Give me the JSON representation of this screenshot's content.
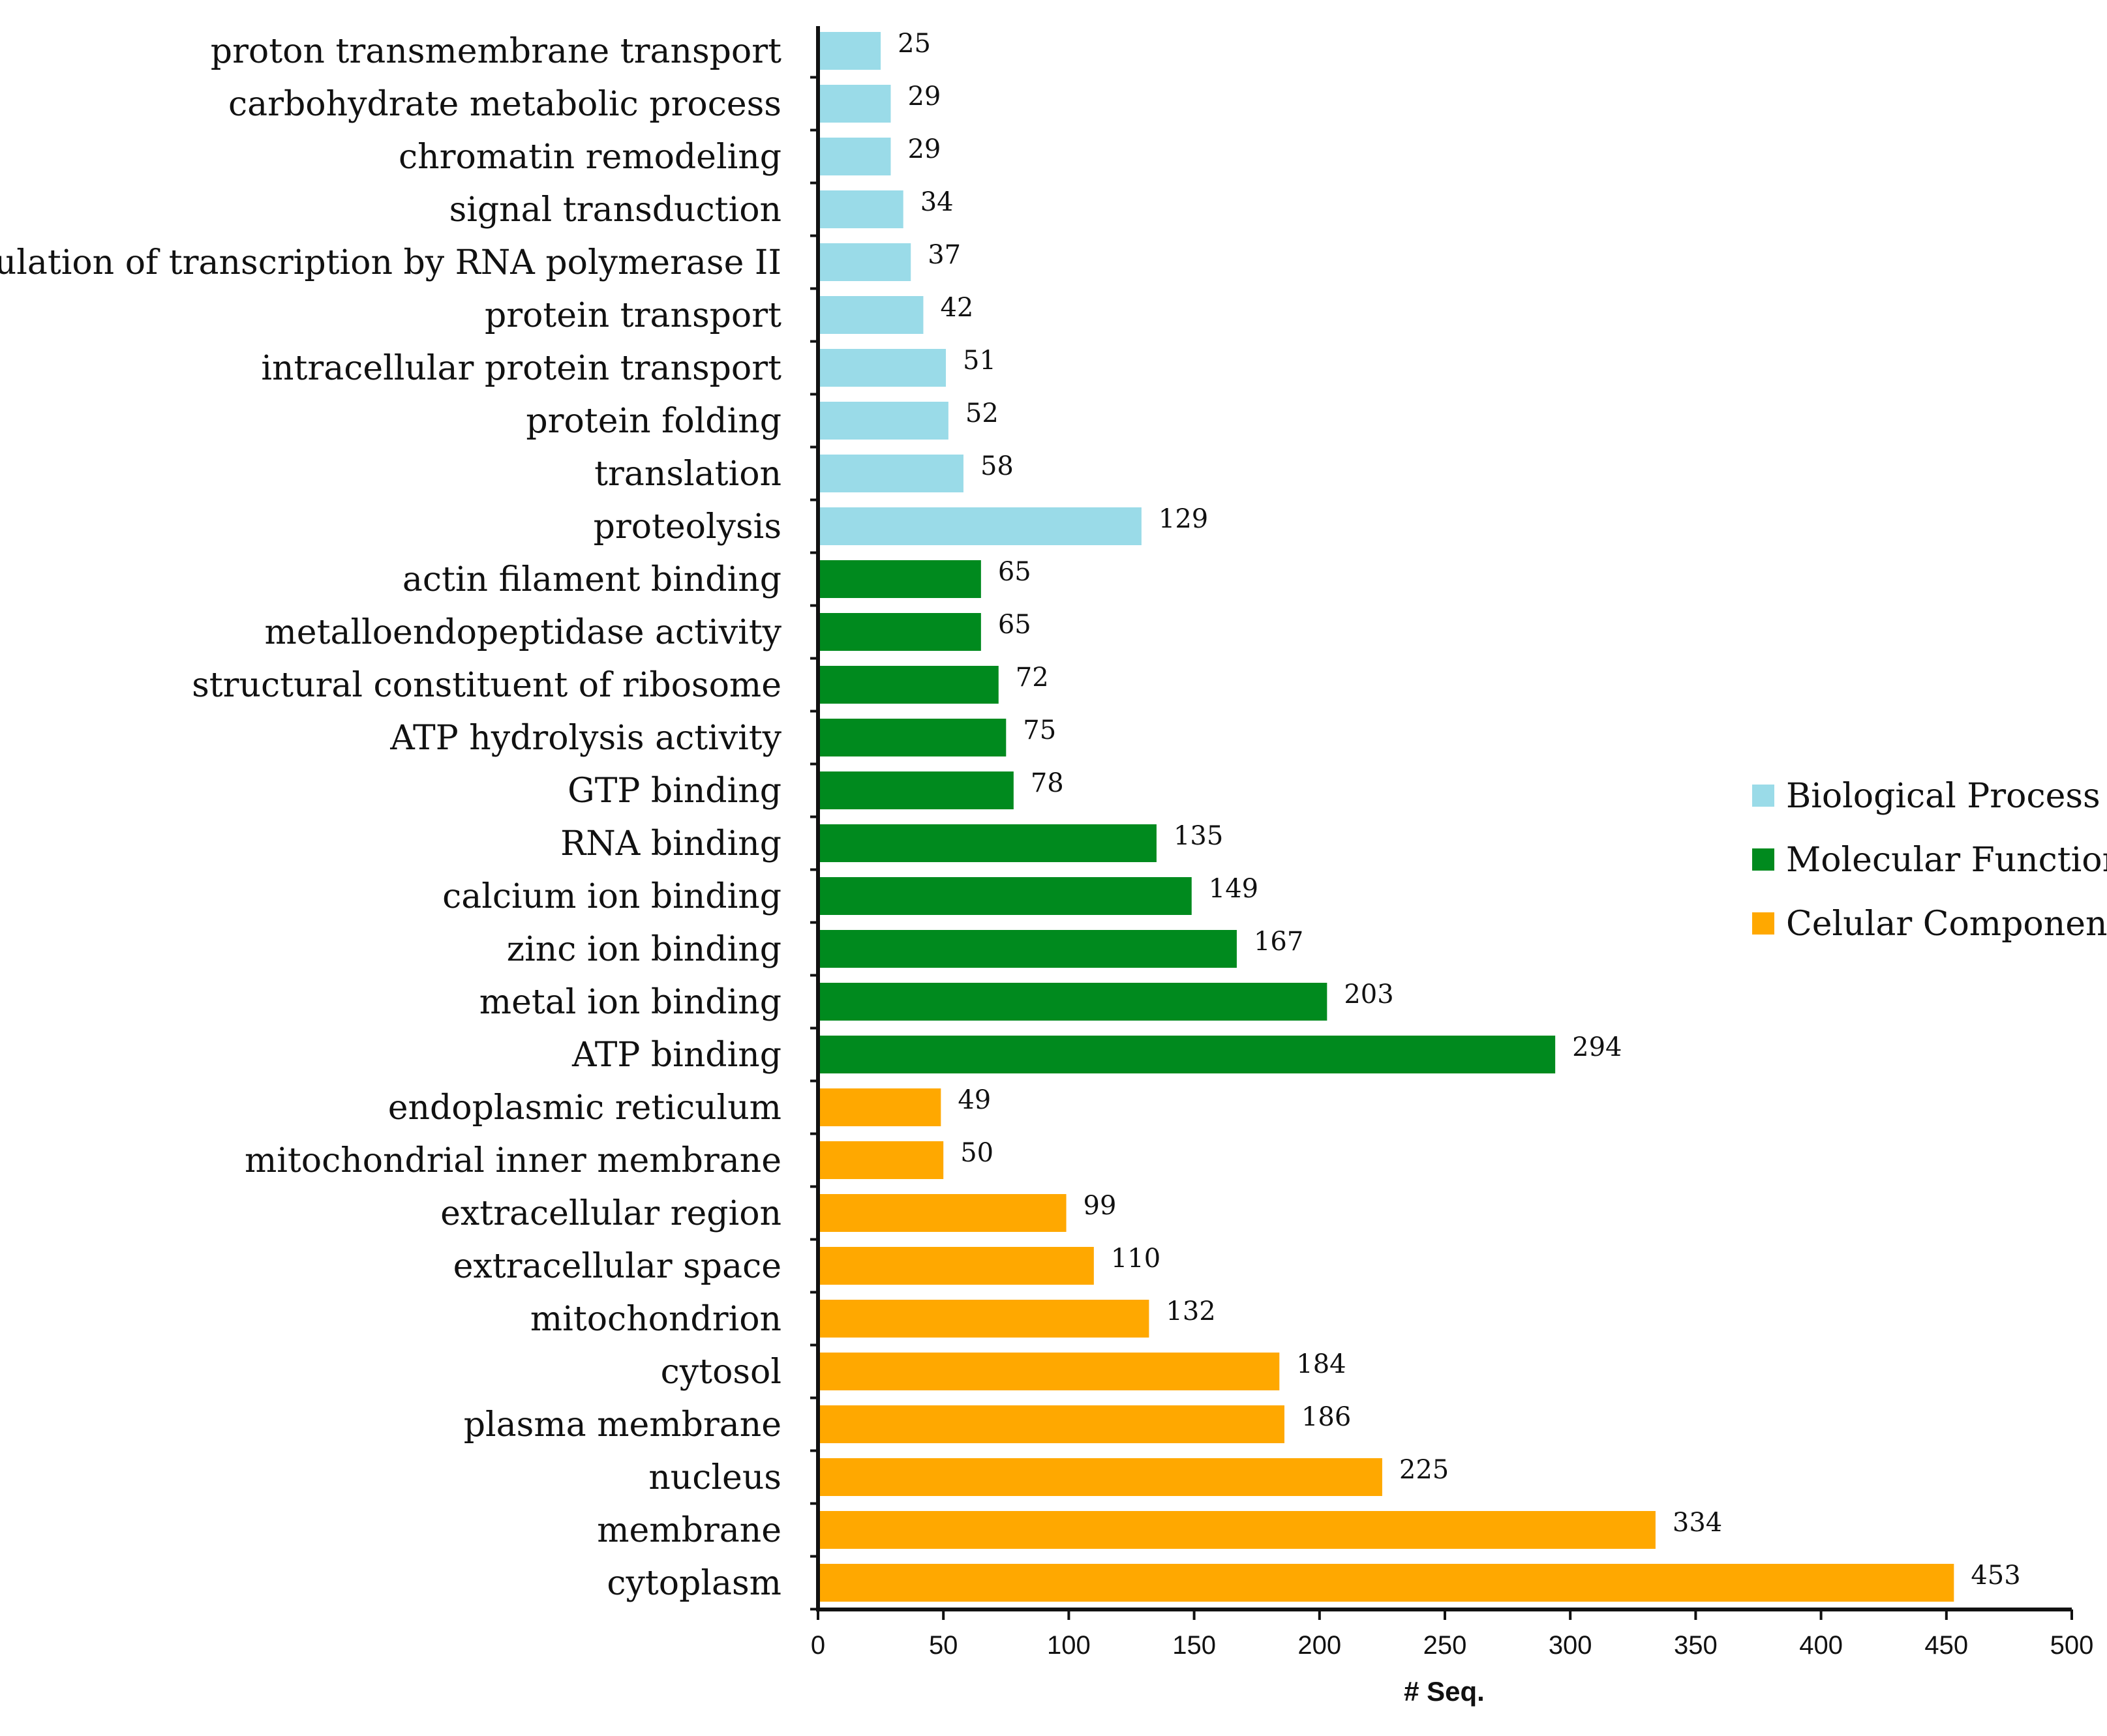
{
  "chart_data": {
    "type": "bar",
    "orientation": "horizontal",
    "title": "",
    "xlabel": "# Seq.",
    "ylabel": "",
    "xlim": [
      0,
      500
    ],
    "xticks": [
      0,
      50,
      100,
      150,
      200,
      250,
      300,
      350,
      400,
      450,
      500
    ],
    "grid": false,
    "legend_position": "right",
    "groups": [
      {
        "name": "Biological Process",
        "color": "#9ADBE8"
      },
      {
        "name": "Molecular Function",
        "color": "#008A1E"
      },
      {
        "name": "Celular Component",
        "color": "#FFA800"
      }
    ],
    "bars": [
      {
        "label": "proton transmembrane transport",
        "value": 25,
        "group": "Biological Process"
      },
      {
        "label": "carbohydrate metabolic process",
        "value": 29,
        "group": "Biological Process"
      },
      {
        "label": "chromatin remodeling",
        "value": 29,
        "group": "Biological Process"
      },
      {
        "label": "signal transduction",
        "value": 34,
        "group": "Biological Process"
      },
      {
        "label": "regulation of transcription by RNA polymerase II",
        "value": 37,
        "group": "Biological Process"
      },
      {
        "label": "protein transport",
        "value": 42,
        "group": "Biological Process"
      },
      {
        "label": "intracellular protein transport",
        "value": 51,
        "group": "Biological Process"
      },
      {
        "label": "protein folding",
        "value": 52,
        "group": "Biological Process"
      },
      {
        "label": "translation",
        "value": 58,
        "group": "Biological Process"
      },
      {
        "label": "proteolysis",
        "value": 129,
        "group": "Biological Process"
      },
      {
        "label": "actin filament binding",
        "value": 65,
        "group": "Molecular Function"
      },
      {
        "label": "metalloendopeptidase activity",
        "value": 65,
        "group": "Molecular Function"
      },
      {
        "label": "structural constituent of ribosome",
        "value": 72,
        "group": "Molecular Function"
      },
      {
        "label": "ATP hydrolysis activity",
        "value": 75,
        "group": "Molecular Function"
      },
      {
        "label": "GTP binding",
        "value": 78,
        "group": "Molecular Function"
      },
      {
        "label": "RNA binding",
        "value": 135,
        "group": "Molecular Function"
      },
      {
        "label": "calcium ion binding",
        "value": 149,
        "group": "Molecular Function"
      },
      {
        "label": "zinc ion binding",
        "value": 167,
        "group": "Molecular Function"
      },
      {
        "label": "metal ion binding",
        "value": 203,
        "group": "Molecular Function"
      },
      {
        "label": "ATP binding",
        "value": 294,
        "group": "Molecular Function"
      },
      {
        "label": "endoplasmic reticulum",
        "value": 49,
        "group": "Celular Component"
      },
      {
        "label": "mitochondrial inner membrane",
        "value": 50,
        "group": "Celular Component"
      },
      {
        "label": "extracellular region",
        "value": 99,
        "group": "Celular Component"
      },
      {
        "label": "extracellular space",
        "value": 110,
        "group": "Celular Component"
      },
      {
        "label": "mitochondrion",
        "value": 132,
        "group": "Celular Component"
      },
      {
        "label": "cytosol",
        "value": 184,
        "group": "Celular Component"
      },
      {
        "label": "plasma membrane",
        "value": 186,
        "group": "Celular Component"
      },
      {
        "label": "nucleus",
        "value": 225,
        "group": "Celular Component"
      },
      {
        "label": "membrane",
        "value": 334,
        "group": "Celular Component"
      },
      {
        "label": "cytoplasm",
        "value": 453,
        "group": "Celular Component"
      }
    ]
  }
}
